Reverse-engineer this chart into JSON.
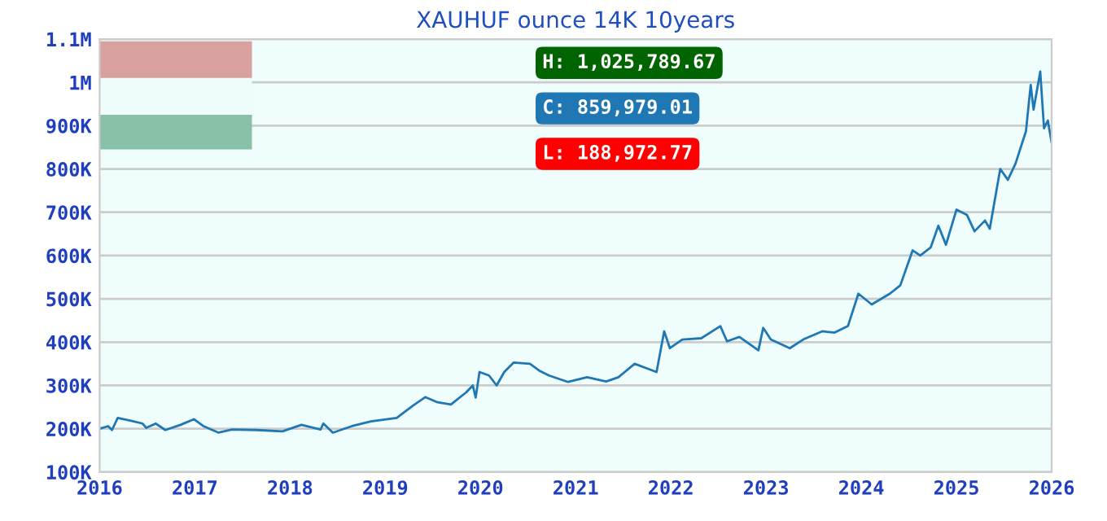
{
  "chart_data": {
    "type": "line",
    "title": "XAUHUF ounce 14K 10years",
    "annotations": [
      "H: 1,025,789.67",
      "C: 859,979.01",
      "L: 188,972.77"
    ],
    "series": [
      {
        "color": "#1f77b4",
        "x": [
          2016.0,
          2016.09,
          2016.13,
          2016.19,
          2016.32,
          2016.45,
          2016.49,
          2016.59,
          2016.69,
          2016.85,
          2016.99,
          2017.09,
          2017.25,
          2017.39,
          2017.65,
          2017.92,
          2018.12,
          2018.32,
          2018.35,
          2018.45,
          2018.65,
          2018.85,
          2019.12,
          2019.29,
          2019.42,
          2019.55,
          2019.69,
          2019.85,
          2019.92,
          2019.95,
          2019.99,
          2020.09,
          2020.17,
          2020.25,
          2020.35,
          2020.52,
          2020.62,
          2020.72,
          2020.92,
          2021.12,
          2021.32,
          2021.45,
          2021.62,
          2021.85,
          2021.93,
          2021.99,
          2022.12,
          2022.32,
          2022.52,
          2022.59,
          2022.72,
          2022.92,
          2022.97,
          2023.05,
          2023.25,
          2023.39,
          2023.59,
          2023.72,
          2023.86,
          2023.97,
          2024.11,
          2024.3,
          2024.41,
          2024.54,
          2024.62,
          2024.73,
          2024.81,
          2024.89,
          2025.0,
          2025.11,
          2025.19,
          2025.3,
          2025.35,
          2025.46,
          2025.54,
          2025.62,
          2025.73,
          2025.78,
          2025.81,
          2025.88,
          2025.92,
          2025.96,
          2026.0
        ],
        "values": [
          200000,
          206000,
          197000,
          225000,
          219000,
          212000,
          202000,
          212000,
          197000,
          209000,
          222000,
          206000,
          191000,
          198000,
          197000,
          194000,
          209000,
          198000,
          212000,
          191000,
          206000,
          217000,
          225000,
          253000,
          273000,
          261000,
          256000,
          284000,
          300000,
          272000,
          331000,
          323000,
          300000,
          331000,
          353000,
          350000,
          334000,
          323000,
          308000,
          319000,
          309000,
          319000,
          350000,
          331000,
          425000,
          386000,
          406000,
          409000,
          437000,
          402000,
          412000,
          381000,
          433000,
          406000,
          386000,
          406000,
          425000,
          422000,
          437000,
          512000,
          487000,
          512000,
          531000,
          612000,
          600000,
          619000,
          669000,
          625000,
          706000,
          694000,
          656000,
          681000,
          662000,
          800000,
          775000,
          812000,
          887000,
          994000,
          937000,
          1025000,
          894000,
          912000,
          860000
        ]
      }
    ],
    "xlim": [
      2016,
      2026
    ],
    "xticks": [
      2016,
      2017,
      2018,
      2019,
      2020,
      2021,
      2022,
      2023,
      2024,
      2025,
      2026
    ],
    "ylim": [
      100000,
      1100000
    ],
    "yticks": [
      {
        "value": 100000,
        "label": "100K"
      },
      {
        "value": 200000,
        "label": "200K"
      },
      {
        "value": 300000,
        "label": "300K"
      },
      {
        "value": 400000,
        "label": "400K"
      },
      {
        "value": 500000,
        "label": "500K"
      },
      {
        "value": 600000,
        "label": "600K"
      },
      {
        "value": 700000,
        "label": "700K"
      },
      {
        "value": 800000,
        "label": "800K"
      },
      {
        "value": 900000,
        "label": "900K"
      },
      {
        "value": 1000000,
        "label": "1M"
      },
      {
        "value": 1100000,
        "label": "1.1M"
      }
    ],
    "grid": "y",
    "marker": "none",
    "line_style": "solid"
  }
}
